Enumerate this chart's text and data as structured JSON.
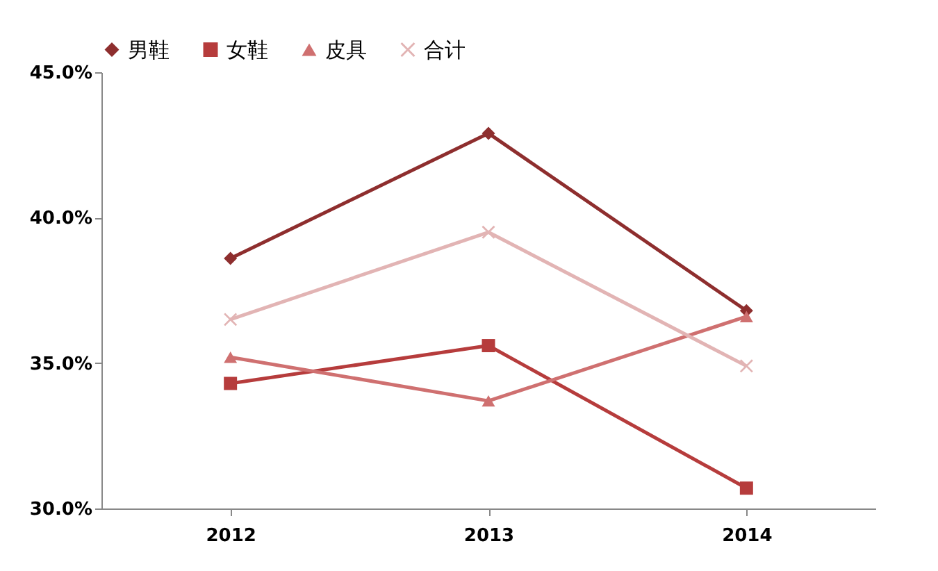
{
  "chart_data": {
    "type": "line",
    "categories": [
      "2012",
      "2013",
      "2014"
    ],
    "series": [
      {
        "name": "男鞋",
        "color": "#8e2e2e",
        "marker": "diamond",
        "values": [
          38.6,
          42.9,
          36.8
        ]
      },
      {
        "name": "女鞋",
        "color": "#b63c3c",
        "marker": "square",
        "values": [
          34.3,
          35.6,
          30.7
        ]
      },
      {
        "name": "皮具",
        "color": "#cf7070",
        "marker": "triangle",
        "values": [
          35.2,
          33.7,
          36.6
        ]
      },
      {
        "name": "合计",
        "color": "#e2b4b4",
        "marker": "cross",
        "values": [
          36.5,
          39.5,
          34.9
        ]
      }
    ],
    "ylim": [
      30,
      45
    ],
    "yticks": [
      {
        "value": 30,
        "label": "30.0%"
      },
      {
        "value": 35,
        "label": "35.0%"
      },
      {
        "value": 40,
        "label": "40.0%"
      },
      {
        "value": 45,
        "label": "45.0%"
      }
    ],
    "grid": false,
    "legend": "top"
  }
}
